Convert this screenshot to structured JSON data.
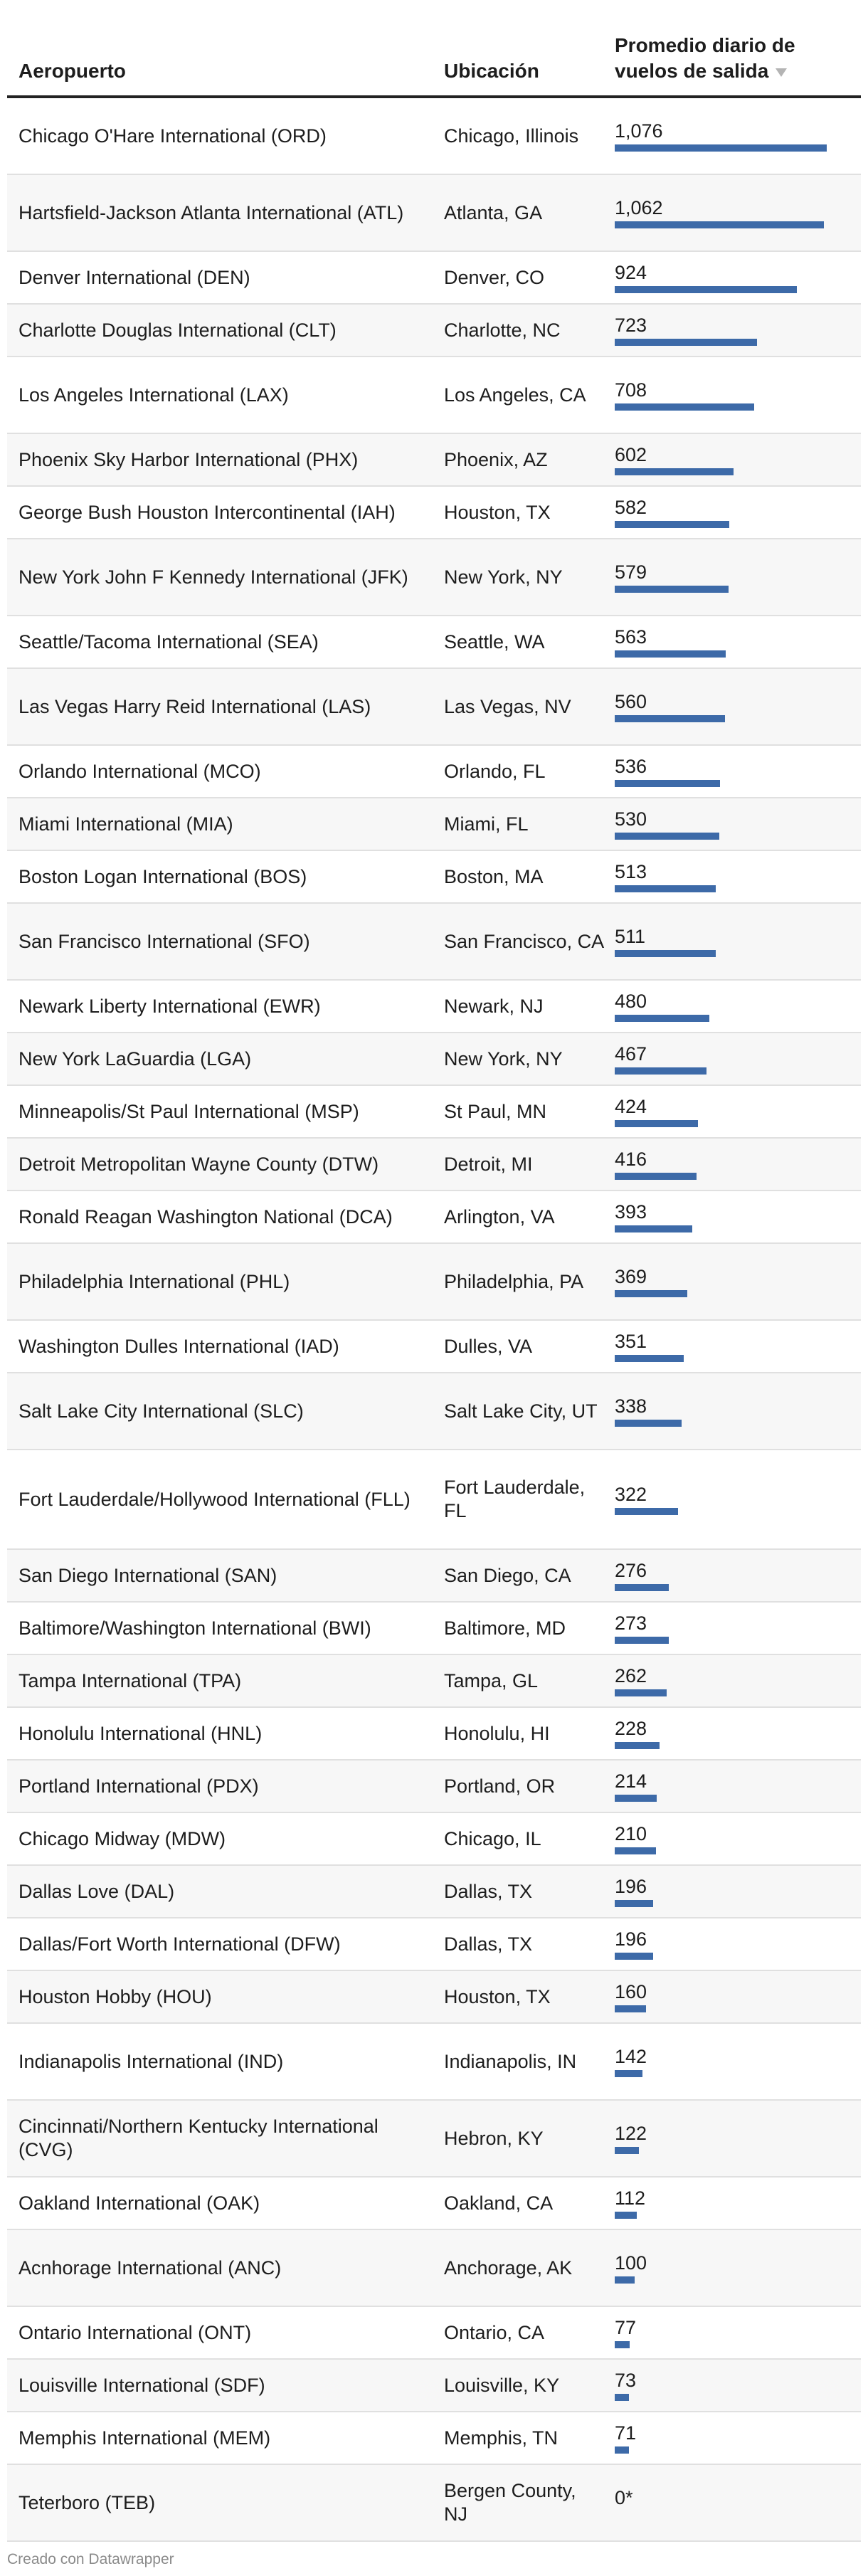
{
  "header": {
    "col_airport": "Aeropuerto",
    "col_location": "Ubicación",
    "col_flights": "Promedio diario de vuelos de salida"
  },
  "footer": {
    "credit": "Creado con Datawrapper"
  },
  "colors": {
    "bar": "#3d6aa8",
    "row_alt": "#f7f7f7"
  },
  "rows": [
    {
      "airport": "Chicago O'Hare International (ORD)",
      "location": "Chicago, Illinois",
      "value_label": "1,076",
      "value": 1076
    },
    {
      "airport": "Hartsfield-Jackson Atlanta International (ATL)",
      "location": "Atlanta, GA",
      "value_label": "1,062",
      "value": 1062
    },
    {
      "airport": "Denver International (DEN)",
      "location": "Denver, CO",
      "value_label": "924",
      "value": 924
    },
    {
      "airport": "Charlotte Douglas International (CLT)",
      "location": "Charlotte, NC",
      "value_label": "723",
      "value": 723
    },
    {
      "airport": "Los Angeles International (LAX)",
      "location": "Los Angeles, CA",
      "value_label": "708",
      "value": 708
    },
    {
      "airport": "Phoenix Sky Harbor International (PHX)",
      "location": "Phoenix, AZ",
      "value_label": "602",
      "value": 602
    },
    {
      "airport": "George Bush Houston Intercontinental (IAH)",
      "location": "Houston, TX",
      "value_label": "582",
      "value": 582
    },
    {
      "airport": "New York John F Kennedy International (JFK)",
      "location": "New York, NY",
      "value_label": "579",
      "value": 579
    },
    {
      "airport": "Seattle/Tacoma International (SEA)",
      "location": "Seattle, WA",
      "value_label": "563",
      "value": 563
    },
    {
      "airport": "Las Vegas Harry Reid International (LAS)",
      "location": "Las Vegas, NV",
      "value_label": "560",
      "value": 560
    },
    {
      "airport": "Orlando International (MCO)",
      "location": "Orlando, FL",
      "value_label": "536",
      "value": 536
    },
    {
      "airport": "Miami International (MIA)",
      "location": "Miami, FL",
      "value_label": "530",
      "value": 530
    },
    {
      "airport": "Boston Logan International (BOS)",
      "location": "Boston, MA",
      "value_label": "513",
      "value": 513
    },
    {
      "airport": "San Francisco International (SFO)",
      "location": "San Francisco, CA",
      "value_label": "511",
      "value": 511
    },
    {
      "airport": "Newark Liberty International (EWR)",
      "location": "Newark, NJ",
      "value_label": "480",
      "value": 480
    },
    {
      "airport": "New York LaGuardia (LGA)",
      "location": "New York, NY",
      "value_label": "467",
      "value": 467
    },
    {
      "airport": "Minneapolis/St Paul International (MSP)",
      "location": "St Paul, MN",
      "value_label": "424",
      "value": 424
    },
    {
      "airport": "Detroit Metropolitan Wayne County (DTW)",
      "location": "Detroit, MI",
      "value_label": "416",
      "value": 416
    },
    {
      "airport": "Ronald Reagan Washington National (DCA)",
      "location": "Arlington, VA",
      "value_label": "393",
      "value": 393
    },
    {
      "airport": "Philadelphia International (PHL)",
      "location": "Philadelphia, PA",
      "value_label": "369",
      "value": 369
    },
    {
      "airport": "Washington Dulles International (IAD)",
      "location": "Dulles, VA",
      "value_label": "351",
      "value": 351
    },
    {
      "airport": "Salt Lake City International (SLC)",
      "location": "Salt Lake City, UT",
      "value_label": "338",
      "value": 338
    },
    {
      "airport": "Fort Lauderdale/Hollywood International (FLL)",
      "location": "Fort Lauderdale, FL",
      "value_label": "322",
      "value": 322
    },
    {
      "airport": "San Diego International (SAN)",
      "location": "San Diego, CA",
      "value_label": "276",
      "value": 276
    },
    {
      "airport": "Baltimore/Washington International (BWI)",
      "location": "Baltimore, MD",
      "value_label": "273",
      "value": 273
    },
    {
      "airport": "Tampa International (TPA)",
      "location": "Tampa, GL",
      "value_label": "262",
      "value": 262
    },
    {
      "airport": "Honolulu International (HNL)",
      "location": "Honolulu, HI",
      "value_label": "228",
      "value": 228
    },
    {
      "airport": "Portland International (PDX)",
      "location": "Portland, OR",
      "value_label": "214",
      "value": 214
    },
    {
      "airport": "Chicago Midway (MDW)",
      "location": "Chicago, IL",
      "value_label": "210",
      "value": 210
    },
    {
      "airport": "Dallas Love (DAL)",
      "location": "Dallas, TX",
      "value_label": "196",
      "value": 196
    },
    {
      "airport": "Dallas/Fort Worth International (DFW)",
      "location": "Dallas, TX",
      "value_label": "196",
      "value": 196
    },
    {
      "airport": "Houston Hobby (HOU)",
      "location": "Houston, TX",
      "value_label": "160",
      "value": 160
    },
    {
      "airport": "Indianapolis International (IND)",
      "location": "Indianapolis, IN",
      "value_label": "142",
      "value": 142
    },
    {
      "airport": "Cincinnati/Northern Kentucky International (CVG)",
      "location": "Hebron, KY",
      "value_label": "122",
      "value": 122
    },
    {
      "airport": "Oakland International (OAK)",
      "location": "Oakland, CA",
      "value_label": "112",
      "value": 112
    },
    {
      "airport": "Acnhorage International (ANC)",
      "location": "Anchorage, AK",
      "value_label": "100",
      "value": 100
    },
    {
      "airport": "Ontario International (ONT)",
      "location": "Ontario, CA",
      "value_label": "77",
      "value": 77
    },
    {
      "airport": "Louisville International (SDF)",
      "location": "Louisville, KY",
      "value_label": "73",
      "value": 73
    },
    {
      "airport": "Memphis International (MEM)",
      "location": "Memphis, TN",
      "value_label": "71",
      "value": 71
    },
    {
      "airport": "Teterboro (TEB)",
      "location": "Bergen County, NJ",
      "value_label": "0*",
      "value": 0
    }
  ],
  "chart_data": {
    "type": "table",
    "columns": [
      "Aeropuerto",
      "Ubicación",
      "Promedio diario de vuelos de salida"
    ],
    "sort": "descending",
    "xlim": [
      0,
      1076
    ],
    "categories": [
      "ORD",
      "ATL",
      "DEN",
      "CLT",
      "LAX",
      "PHX",
      "IAH",
      "JFK",
      "SEA",
      "LAS",
      "MCO",
      "MIA",
      "BOS",
      "SFO",
      "EWR",
      "LGA",
      "MSP",
      "DTW",
      "DCA",
      "PHL",
      "IAD",
      "SLC",
      "FLL",
      "SAN",
      "BWI",
      "TPA",
      "HNL",
      "PDX",
      "MDW",
      "DAL",
      "DFW",
      "HOU",
      "IND",
      "CVG",
      "OAK",
      "ANC",
      "ONT",
      "SDF",
      "MEM",
      "TEB"
    ],
    "values": [
      1076,
      1062,
      924,
      723,
      708,
      602,
      582,
      579,
      563,
      560,
      536,
      530,
      513,
      511,
      480,
      467,
      424,
      416,
      393,
      369,
      351,
      338,
      322,
      276,
      273,
      262,
      228,
      214,
      210,
      196,
      196,
      160,
      142,
      122,
      112,
      100,
      77,
      73,
      71,
      0
    ]
  }
}
